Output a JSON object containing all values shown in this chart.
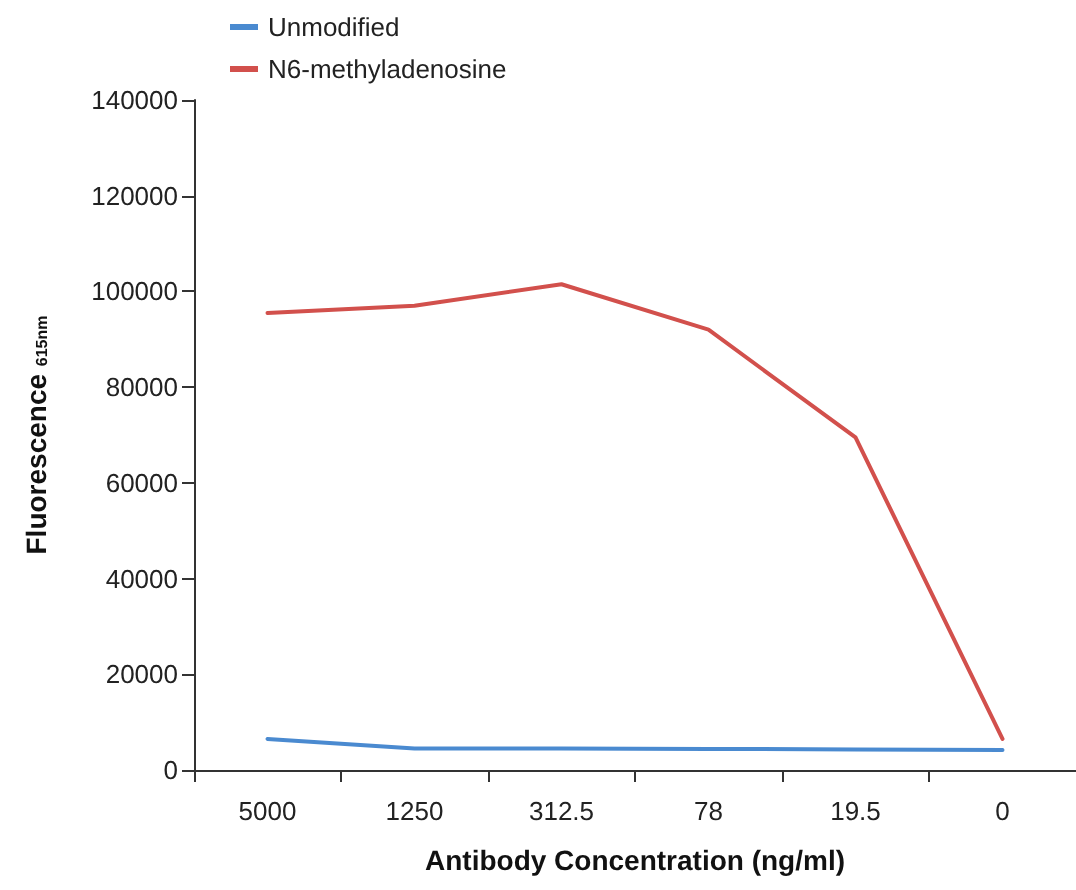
{
  "chart_data": {
    "type": "line",
    "xlabel": "Antibody Concentration (ng/ml)",
    "ylabel": "Fluorescence $_{615nm}$",
    "categories": [
      "5000",
      "1250",
      "312.5",
      "78",
      "19.5",
      "0"
    ],
    "series": [
      {
        "name": "Unmodified",
        "color": "#4a8ad0",
        "values": [
          6500,
          4500,
          4500,
          4400,
          4300,
          4200
        ]
      },
      {
        "name": "N6-methyladenosine",
        "color": "#d2504c",
        "values": [
          95500,
          97000,
          101500,
          92000,
          69500,
          6500
        ]
      }
    ],
    "ylim": [
      0,
      140000
    ],
    "yticks": [
      0,
      20000,
      40000,
      60000,
      80000,
      100000,
      120000,
      140000
    ],
    "grid": false,
    "legend": "top left",
    "marker": "none",
    "line_style": "solid"
  }
}
